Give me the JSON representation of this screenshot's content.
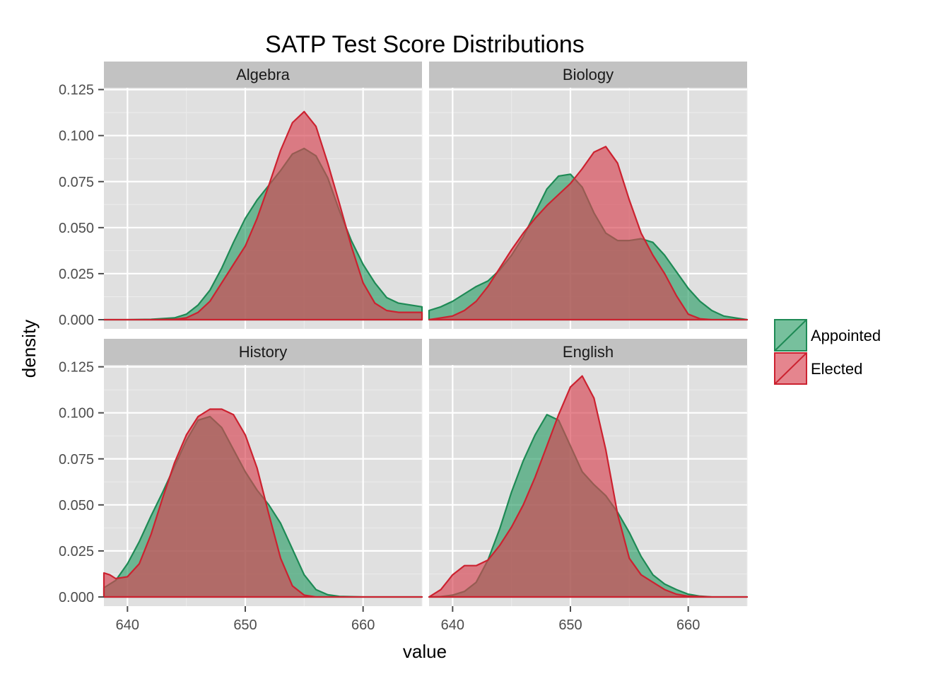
{
  "chart_data": {
    "type": "area",
    "title": "SATP Test Score Distributions",
    "xlabel": "value",
    "ylabel": "density",
    "xlim": [
      638,
      665
    ],
    "ylim": [
      -0.005,
      0.126
    ],
    "x_ticks": [
      640,
      650,
      660
    ],
    "y_ticks": [
      0,
      0.025,
      0.05,
      0.075,
      0.1,
      0.125
    ],
    "y_tick_labels": [
      "0.000",
      "0.025",
      "0.050",
      "0.075",
      "0.100",
      "0.125"
    ],
    "grid": true,
    "legend_position": "right",
    "series": [
      {
        "name": "Appointed",
        "color": "#1e8a55",
        "fill": "#2e9e69"
      },
      {
        "name": "Elected",
        "color": "#cc2230",
        "fill": "#d74451"
      }
    ],
    "panels": [
      {
        "label": "Algebra",
        "curves": {
          "Appointed": {
            "x": [
              638,
              640,
              642,
              644,
              645,
              646,
              647,
              648,
              649,
              650,
              651,
              652,
              653,
              654,
              655,
              656,
              657,
              658,
              659,
              660,
              661,
              662,
              663,
              664,
              665
            ],
            "y": [
              0,
              0,
              0.0002,
              0.001,
              0.003,
              0.008,
              0.016,
              0.028,
              0.042,
              0.055,
              0.065,
              0.073,
              0.081,
              0.09,
              0.093,
              0.089,
              0.077,
              0.059,
              0.043,
              0.03,
              0.02,
              0.012,
              0.009,
              0.008,
              0.007
            ]
          },
          "Elected": {
            "x": [
              638,
              640,
              642,
              644,
              645,
              646,
              647,
              648,
              649,
              650,
              651,
              652,
              653,
              654,
              655,
              656,
              657,
              658,
              659,
              660,
              661,
              662,
              663,
              664,
              665
            ],
            "y": [
              0,
              0,
              0,
              0.0002,
              0.001,
              0.004,
              0.01,
              0.02,
              0.03,
              0.04,
              0.055,
              0.073,
              0.092,
              0.107,
              0.113,
              0.105,
              0.085,
              0.063,
              0.04,
              0.02,
              0.009,
              0.005,
              0.004,
              0.004,
              0.004
            ]
          }
        }
      },
      {
        "label": "Biology",
        "curves": {
          "Appointed": {
            "x": [
              638,
              639,
              640,
              641,
              642,
              643,
              644,
              645,
              646,
              647,
              648,
              649,
              650,
              651,
              652,
              653,
              654,
              655,
              656,
              657,
              658,
              659,
              660,
              661,
              662,
              663,
              664,
              665
            ],
            "y": [
              0.005,
              0.007,
              0.01,
              0.014,
              0.018,
              0.021,
              0.027,
              0.035,
              0.045,
              0.058,
              0.071,
              0.078,
              0.079,
              0.072,
              0.058,
              0.047,
              0.043,
              0.043,
              0.044,
              0.042,
              0.035,
              0.026,
              0.017,
              0.01,
              0.005,
              0.002,
              0.001,
              0
            ]
          },
          "Elected": {
            "x": [
              638,
              639,
              640,
              641,
              642,
              643,
              644,
              645,
              646,
              647,
              648,
              649,
              650,
              651,
              652,
              653,
              654,
              655,
              656,
              657,
              658,
              659,
              660,
              661,
              662,
              663,
              664,
              665
            ],
            "y": [
              0,
              0.001,
              0.002,
              0.005,
              0.01,
              0.018,
              0.028,
              0.038,
              0.047,
              0.055,
              0.062,
              0.068,
              0.074,
              0.082,
              0.091,
              0.094,
              0.085,
              0.065,
              0.047,
              0.035,
              0.025,
              0.013,
              0.003,
              0.0005,
              0,
              0,
              0,
              0
            ]
          }
        }
      },
      {
        "label": "History",
        "curves": {
          "Appointed": {
            "x": [
              638,
              639,
              640,
              641,
              642,
              643,
              644,
              645,
              646,
              647,
              648,
              649,
              650,
              651,
              652,
              653,
              654,
              655,
              656,
              657,
              658,
              660,
              662,
              665
            ],
            "y": [
              0.005,
              0.009,
              0.018,
              0.03,
              0.044,
              0.057,
              0.071,
              0.085,
              0.096,
              0.098,
              0.092,
              0.08,
              0.068,
              0.058,
              0.05,
              0.04,
              0.026,
              0.012,
              0.004,
              0.0012,
              0.0003,
              0,
              0,
              0
            ]
          },
          "Elected": {
            "x": [
              638,
              638.5,
              639,
              640,
              641,
              642,
              643,
              644,
              645,
              646,
              647,
              648,
              649,
              650,
              651,
              652,
              653,
              654,
              655,
              656,
              658,
              660,
              662,
              665
            ],
            "y": [
              0.013,
              0.012,
              0.01,
              0.011,
              0.018,
              0.034,
              0.054,
              0.073,
              0.088,
              0.098,
              0.102,
              0.102,
              0.099,
              0.088,
              0.07,
              0.045,
              0.021,
              0.006,
              0.001,
              0,
              0,
              0,
              0,
              0
            ]
          }
        }
      },
      {
        "label": "English",
        "curves": {
          "Appointed": {
            "x": [
              638,
              639,
              640,
              641,
              642,
              643,
              644,
              645,
              646,
              647,
              648,
              649,
              650,
              651,
              652,
              653,
              654,
              655,
              656,
              657,
              658,
              659,
              660,
              661,
              662,
              663,
              665
            ],
            "y": [
              0,
              0.0002,
              0.001,
              0.003,
              0.008,
              0.02,
              0.037,
              0.057,
              0.074,
              0.088,
              0.099,
              0.096,
              0.082,
              0.068,
              0.061,
              0.055,
              0.046,
              0.035,
              0.022,
              0.012,
              0.007,
              0.004,
              0.0015,
              0.0004,
              0,
              0,
              0
            ]
          },
          "Elected": {
            "x": [
              638,
              639,
              640,
              641,
              642,
              643,
              644,
              645,
              646,
              647,
              648,
              649,
              650,
              651,
              652,
              653,
              654,
              655,
              656,
              657,
              658,
              659,
              660,
              662,
              665
            ],
            "y": [
              0,
              0.004,
              0.012,
              0.017,
              0.017,
              0.02,
              0.028,
              0.038,
              0.05,
              0.065,
              0.082,
              0.099,
              0.114,
              0.12,
              0.108,
              0.08,
              0.045,
              0.021,
              0.012,
              0.008,
              0.004,
              0.0015,
              0.0004,
              0,
              0
            ]
          }
        }
      }
    ]
  }
}
